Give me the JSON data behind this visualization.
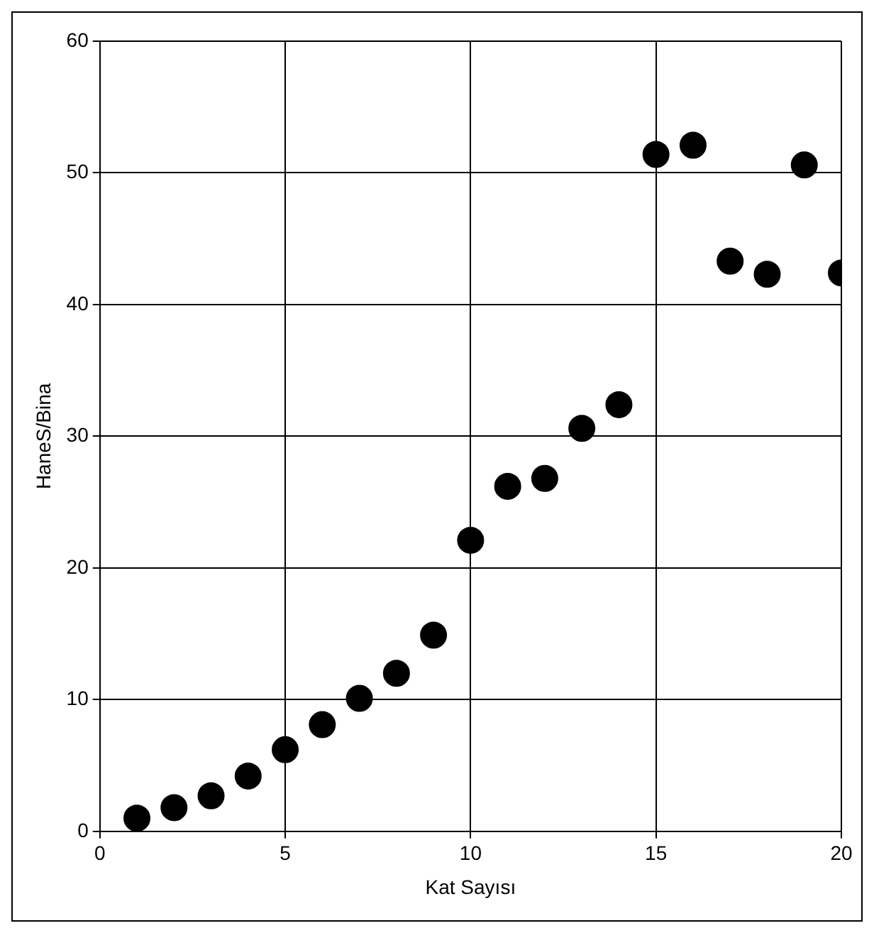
{
  "chart_data": {
    "type": "scatter",
    "xlabel": "Kat Sayısı",
    "ylabel": "HaneS/Bina",
    "x": [
      1,
      2,
      3,
      4,
      5,
      6,
      7,
      8,
      9,
      10,
      11,
      12,
      13,
      14,
      15,
      16,
      17,
      18,
      19,
      20
    ],
    "series": [
      {
        "color": "#000000",
        "values": [
          1.0,
          1.8,
          2.7,
          4.2,
          6.2,
          8.1,
          10.1,
          12.0,
          14.9,
          22.1,
          26.2,
          26.8,
          30.6,
          32.4,
          51.4,
          52.1,
          43.3,
          42.3,
          50.6,
          42.4
        ]
      }
    ],
    "xlim": [
      0,
      20
    ],
    "xticks": [
      0,
      5,
      10,
      15,
      20
    ],
    "ylim": [
      0,
      60
    ],
    "yticks": [
      0,
      10,
      20,
      30,
      40,
      50,
      60
    ],
    "grid": true,
    "legend": false,
    "marker": "circle"
  }
}
